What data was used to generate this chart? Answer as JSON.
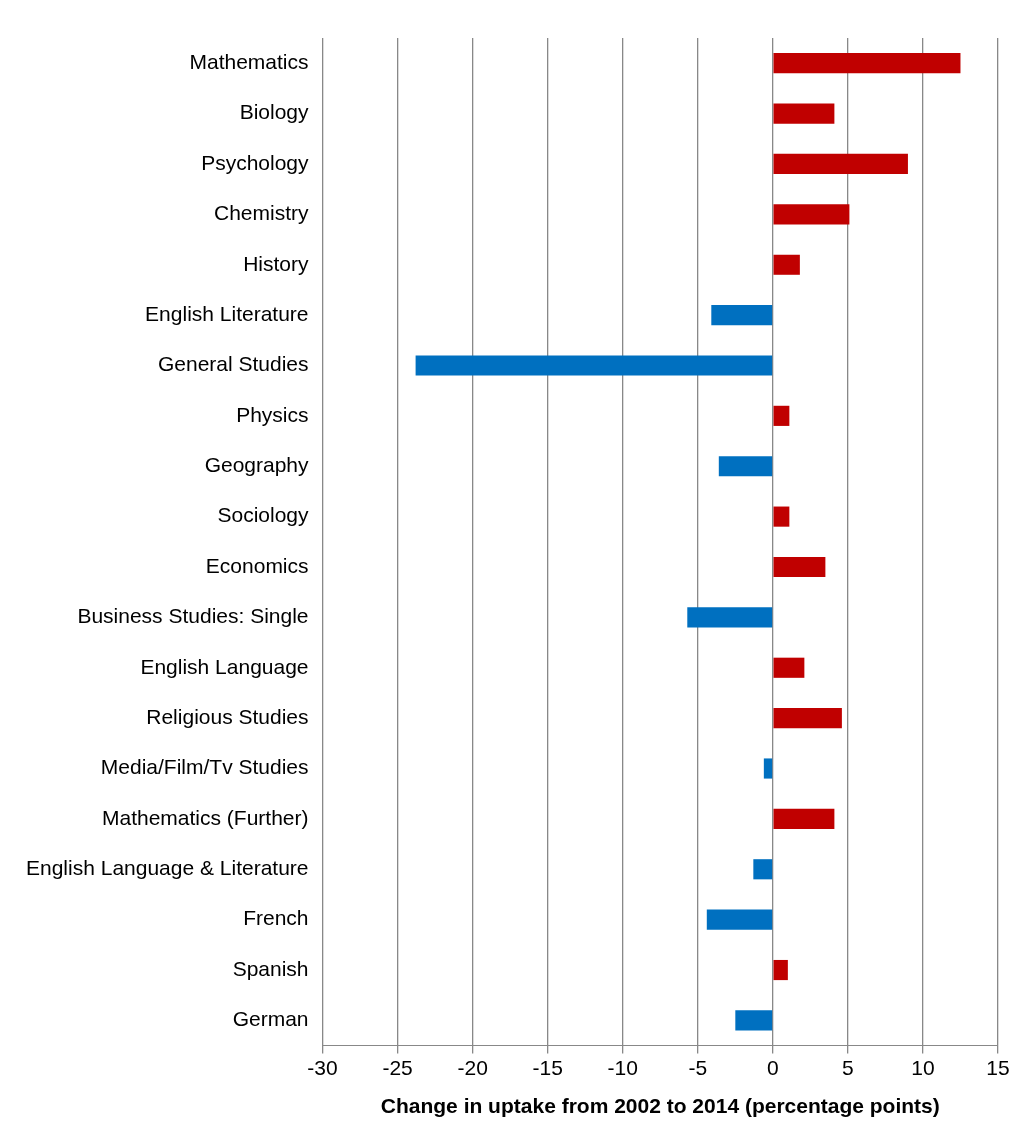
{
  "chart_data": {
    "type": "bar",
    "orientation": "horizontal",
    "xlabel": "Change in uptake from 2002 to 2014 (percentage points)",
    "categories": [
      "Mathematics",
      "Biology",
      "Psychology",
      "Chemistry",
      "History",
      "English Literature",
      "General Studies",
      "Physics",
      "Geography",
      "Sociology",
      "Economics",
      "Business Studies: Single",
      "English Language",
      "Religious Studies",
      "Media/Film/Tv Studies",
      "Mathematics (Further)",
      "English Language & Literature",
      "French",
      "Spanish",
      "German"
    ],
    "values": [
      12.5,
      4.1,
      9.0,
      5.1,
      1.8,
      -4.1,
      -23.8,
      1.1,
      -3.6,
      1.1,
      3.5,
      -5.7,
      2.1,
      4.6,
      -0.6,
      4.1,
      -1.3,
      -4.4,
      1.0,
      -2.5
    ],
    "colors": [
      "#c00000",
      "#c00000",
      "#c00000",
      "#c00000",
      "#c00000",
      "#0070c0",
      "#0070c0",
      "#c00000",
      "#0070c0",
      "#c00000",
      "#c00000",
      "#0070c0",
      "#c00000",
      "#c00000",
      "#0070c0",
      "#c00000",
      "#0070c0",
      "#0070c0",
      "#c00000",
      "#0070c0"
    ],
    "xlim": [
      -30,
      15
    ],
    "xticks": [
      -30,
      -25,
      -20,
      -15,
      -10,
      -5,
      0,
      5,
      10,
      15
    ],
    "grid": "x",
    "legend": false
  }
}
